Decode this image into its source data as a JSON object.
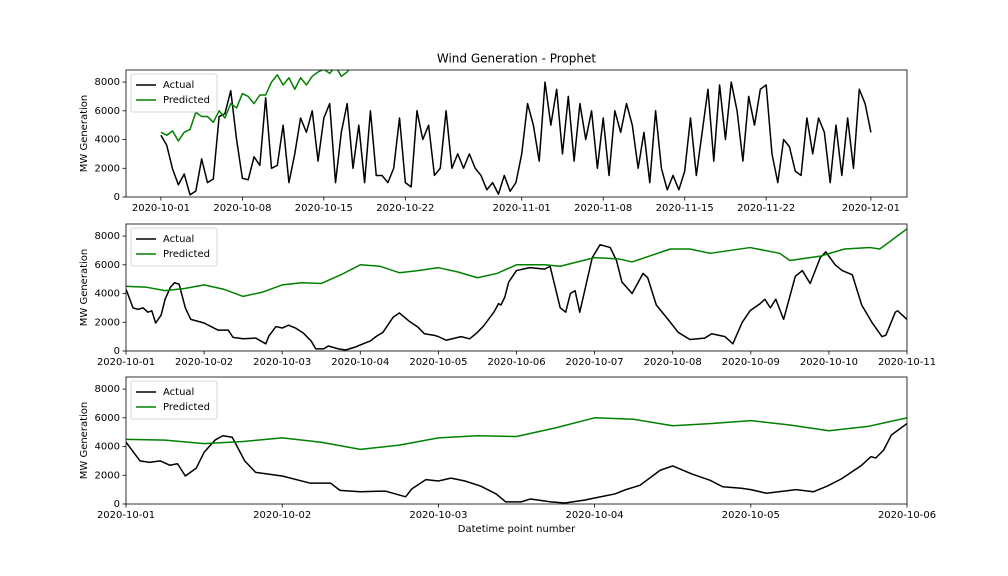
{
  "chart_data": [
    {
      "type": "line",
      "title": "Wind Generation - Prophet",
      "ylabel": "MW Generation",
      "legend": "upper left",
      "xlim": [
        -3.0,
        64.1
      ],
      "ylim": [
        0,
        8840
      ],
      "xticks": [
        {
          "value": 0,
          "label": "2020-10-01"
        },
        {
          "value": 7,
          "label": "2020-10-08"
        },
        {
          "value": 14,
          "label": "2020-10-15"
        },
        {
          "value": 21,
          "label": "2020-10-22"
        },
        {
          "value": 31,
          "label": "2020-11-01"
        },
        {
          "value": 38,
          "label": "2020-11-08"
        },
        {
          "value": 45,
          "label": "2020-11-15"
        },
        {
          "value": 52,
          "label": "2020-11-22"
        },
        {
          "value": 61,
          "label": "2020-12-01"
        }
      ],
      "yticks": [
        0,
        2000,
        4000,
        6000,
        8000
      ],
      "series": [
        {
          "name": "Actual",
          "color": "#000000",
          "x": [
            0,
            0.5,
            1,
            1.5,
            2,
            2.5,
            3,
            3.5,
            4,
            4.5,
            5,
            5.5,
            6,
            6.5,
            7,
            7.5,
            8,
            8.5,
            9,
            9.5,
            10,
            10.5,
            11,
            11.5,
            12,
            12.5,
            13,
            13.5,
            14,
            14.5,
            15,
            15.5,
            16,
            16.5,
            17,
            17.5,
            18,
            18.5,
            19,
            19.5,
            20,
            20.5,
            21,
            21.5,
            22,
            22.5,
            23,
            23.5,
            24,
            24.5,
            25,
            25.5,
            26,
            26.5,
            27,
            27.5,
            28,
            28.5,
            29,
            29.5,
            30,
            30.5,
            31,
            31.5,
            32,
            32.5,
            33,
            33.5,
            34,
            34.5,
            35,
            35.5,
            36,
            36.5,
            37,
            37.5,
            38,
            38.5,
            39,
            39.5,
            40,
            40.5,
            41,
            41.5,
            42,
            42.5,
            43,
            43.5,
            44,
            44.5,
            45,
            45.5,
            46,
            46.5,
            47,
            47.5,
            48,
            48.5,
            49,
            49.5,
            50,
            50.5,
            51,
            51.5,
            52,
            52.5,
            53,
            53.5,
            54,
            54.5,
            55,
            55.5,
            56,
            56.5,
            57,
            57.5,
            58,
            58.5,
            59,
            59.5,
            60,
            60.5,
            61
          ],
          "values": [
            4300,
            3600,
            1950,
            850,
            1600,
            150,
            420,
            2650,
            1000,
            1250,
            5600,
            5800,
            7400,
            4000,
            1300,
            1200,
            2800,
            2200,
            6900,
            2000,
            2200,
            5000,
            1000,
            3000,
            5500,
            4500,
            6000,
            2500,
            5500,
            6500,
            1000,
            4500,
            6500,
            2000,
            5000,
            1000,
            6000,
            1500,
            1500,
            1000,
            2000,
            5500,
            1000,
            700,
            6000,
            4000,
            5000,
            1500,
            2000,
            6000,
            2000,
            3000,
            2000,
            3000,
            2000,
            1500,
            500,
            1000,
            200,
            1500,
            400,
            1000,
            3000,
            6500,
            5000,
            2500,
            8000,
            5000,
            7500,
            3000,
            7000,
            2500,
            6500,
            4000,
            6000,
            2000,
            5500,
            1500,
            6000,
            4500,
            6500,
            5000,
            2000,
            4500,
            1000,
            6000,
            2000,
            500,
            1500,
            500,
            1800,
            5500,
            1500,
            4500,
            7500,
            2500,
            7800,
            4000,
            8000,
            6000,
            2500,
            7000,
            5000,
            7500,
            7800,
            3000,
            1000,
            4000,
            3500,
            1800,
            1500,
            5500,
            3000,
            5500,
            4500,
            1000,
            5000,
            1500,
            5500,
            2000,
            7500,
            6500,
            4500
          ]
        },
        {
          "name": "Predicted",
          "color": "#008000",
          "x": [
            0,
            0.5,
            1,
            1.5,
            2,
            2.5,
            3,
            3.5,
            4,
            4.5,
            5,
            5.5,
            6,
            6.5,
            7,
            7.5,
            8,
            8.5,
            9,
            9.5,
            10,
            10.5,
            11,
            11.5,
            12,
            12.5,
            13,
            13.5,
            14,
            14.5,
            15,
            15.5,
            16,
            16.5
          ],
          "values": [
            4500,
            4300,
            4600,
            3900,
            4500,
            4700,
            5900,
            5600,
            5600,
            5200,
            6000,
            5500,
            6500,
            6200,
            7200,
            7000,
            6500,
            7100,
            7100,
            8000,
            8500,
            7800,
            8300,
            7500,
            8300,
            7800,
            8400,
            8700,
            8900,
            8600,
            9100,
            8400,
            8700,
            9300
          ]
        }
      ]
    },
    {
      "type": "line",
      "ylabel": "MW Generation",
      "legend": "upper left",
      "xlim": [
        0,
        10
      ],
      "ylim": [
        0,
        8840
      ],
      "xticks": [
        {
          "value": 0,
          "label": "2020-10-01"
        },
        {
          "value": 1,
          "label": "2020-10-02"
        },
        {
          "value": 2,
          "label": "2020-10-03"
        },
        {
          "value": 3,
          "label": "2020-10-04"
        },
        {
          "value": 4,
          "label": "2020-10-05"
        },
        {
          "value": 5,
          "label": "2020-10-06"
        },
        {
          "value": 6,
          "label": "2020-10-07"
        },
        {
          "value": 7,
          "label": "2020-10-08"
        },
        {
          "value": 8,
          "label": "2020-10-09"
        },
        {
          "value": 9,
          "label": "2020-10-10"
        },
        {
          "value": 10,
          "label": "2020-10-11"
        }
      ],
      "yticks": [
        0,
        2000,
        4000,
        6000,
        8000
      ],
      "series": [
        {
          "name": "Actual",
          "color": "#000000",
          "x": [
            0,
            0.09,
            0.15,
            0.22,
            0.28,
            0.33,
            0.38,
            0.45,
            0.5,
            0.57,
            0.62,
            0.68,
            0.76,
            0.83,
            1.0,
            1.18,
            1.31,
            1.37,
            1.5,
            1.66,
            1.79,
            1.83,
            1.92,
            2.0,
            2.08,
            2.17,
            2.27,
            2.37,
            2.43,
            2.53,
            2.59,
            2.72,
            2.81,
            2.94,
            3.0,
            3.13,
            3.2,
            3.29,
            3.42,
            3.5,
            3.62,
            3.74,
            3.82,
            3.94,
            4.0,
            4.1,
            4.29,
            4.4,
            4.49,
            4.58,
            4.71,
            4.77,
            4.8,
            4.85,
            4.9,
            5.0,
            5.17,
            5.36,
            5.43,
            5.56,
            5.63,
            5.69,
            5.75,
            5.81,
            5.97,
            6.07,
            6.2,
            6.28,
            6.35,
            6.48,
            6.62,
            6.68,
            6.79,
            6.94,
            7.07,
            7.22,
            7.41,
            7.5,
            7.67,
            7.77,
            7.89,
            7.99,
            8.12,
            8.18,
            8.25,
            8.32,
            8.42,
            8.57,
            8.66,
            8.76,
            8.89,
            8.96,
            9.08,
            9.17,
            9.3,
            9.42,
            9.55,
            9.68,
            9.73,
            9.85,
            9.88,
            10.0
          ],
          "values": [
            4300,
            3000,
            2900,
            3000,
            2700,
            2800,
            1950,
            2500,
            3600,
            4450,
            4750,
            4650,
            3000,
            2200,
            1950,
            1450,
            1450,
            950,
            850,
            900,
            500,
            1050,
            1700,
            1600,
            1800,
            1600,
            1250,
            700,
            150,
            150,
            350,
            150,
            70,
            280,
            420,
            700,
            1000,
            1300,
            2350,
            2650,
            2100,
            1650,
            1200,
            1100,
            1000,
            750,
            1000,
            850,
            1250,
            1750,
            2700,
            3300,
            3200,
            3750,
            4800,
            5600,
            5800,
            5700,
            5900,
            3000,
            2700,
            4000,
            4200,
            2700,
            6500,
            7400,
            7200,
            6300,
            4800,
            4000,
            5400,
            5100,
            3200,
            2200,
            1300,
            800,
            900,
            1200,
            1000,
            500,
            2000,
            2800,
            3300,
            3600,
            3000,
            3600,
            2200,
            5200,
            5600,
            4700,
            6500,
            6900,
            6000,
            5600,
            5300,
            3200,
            2000,
            1000,
            1100,
            2700,
            2800,
            2200
          ]
        },
        {
          "name": "Predicted",
          "color": "#008000",
          "x": [
            0,
            0.25,
            0.5,
            0.75,
            1,
            1.25,
            1.5,
            1.75,
            2,
            2.25,
            2.5,
            2.75,
            3,
            3.25,
            3.5,
            3.75,
            4,
            4.25,
            4.5,
            4.75,
            5,
            5.36,
            5.56,
            6.0,
            6.32,
            6.48,
            6.97,
            7.22,
            7.48,
            7.99,
            8.37,
            8.5,
            8.89,
            9.2,
            9.53,
            9.65,
            10.0
          ],
          "values": [
            4500,
            4450,
            4200,
            4350,
            4600,
            4300,
            3800,
            4100,
            4600,
            4750,
            4700,
            5300,
            6000,
            5900,
            5450,
            5600,
            5800,
            5500,
            5100,
            5400,
            6000,
            6000,
            5900,
            6500,
            6400,
            6200,
            7100,
            7100,
            6800,
            7200,
            6800,
            6300,
            6600,
            7100,
            7200,
            7100,
            8500
          ]
        }
      ]
    },
    {
      "type": "line",
      "ylabel": "MW Generation",
      "xlabel": "Datetime point number",
      "legend": "upper left",
      "xlim": [
        0,
        5
      ],
      "ylim": [
        0,
        8840
      ],
      "xticks": [
        {
          "value": 0,
          "label": "2020-10-01"
        },
        {
          "value": 1,
          "label": "2020-10-02"
        },
        {
          "value": 2,
          "label": "2020-10-03"
        },
        {
          "value": 3,
          "label": "2020-10-04"
        },
        {
          "value": 4,
          "label": "2020-10-05"
        },
        {
          "value": 5,
          "label": "2020-10-06"
        }
      ],
      "yticks": [
        0,
        2000,
        4000,
        6000,
        8000
      ],
      "series": [
        {
          "name": "Actual",
          "color": "#000000",
          "x": [
            0,
            0.09,
            0.15,
            0.22,
            0.28,
            0.33,
            0.38,
            0.45,
            0.5,
            0.57,
            0.62,
            0.68,
            0.76,
            0.83,
            1.0,
            1.18,
            1.31,
            1.37,
            1.5,
            1.66,
            1.79,
            1.83,
            1.92,
            2.0,
            2.08,
            2.17,
            2.27,
            2.37,
            2.43,
            2.53,
            2.59,
            2.72,
            2.81,
            2.94,
            3.0,
            3.13,
            3.2,
            3.29,
            3.42,
            3.5,
            3.62,
            3.74,
            3.82,
            3.94,
            4.0,
            4.1,
            4.29,
            4.4,
            4.49,
            4.58,
            4.71,
            4.77,
            4.8,
            4.85,
            4.9,
            5.0
          ],
          "values": [
            4300,
            3000,
            2900,
            3000,
            2700,
            2800,
            1950,
            2500,
            3600,
            4450,
            4750,
            4650,
            3000,
            2200,
            1950,
            1450,
            1450,
            950,
            850,
            900,
            500,
            1050,
            1700,
            1600,
            1800,
            1600,
            1250,
            700,
            150,
            150,
            350,
            150,
            70,
            280,
            420,
            700,
            1000,
            1300,
            2350,
            2650,
            2100,
            1650,
            1200,
            1100,
            1000,
            750,
            1000,
            850,
            1250,
            1750,
            2700,
            3300,
            3200,
            3750,
            4800,
            5600
          ]
        },
        {
          "name": "Predicted",
          "color": "#008000",
          "x": [
            0,
            0.25,
            0.5,
            0.75,
            1,
            1.25,
            1.5,
            1.75,
            2,
            2.25,
            2.5,
            2.75,
            3,
            3.25,
            3.5,
            3.75,
            4,
            4.25,
            4.5,
            4.75,
            5
          ],
          "values": [
            4500,
            4450,
            4200,
            4350,
            4600,
            4300,
            3800,
            4100,
            4600,
            4750,
            4700,
            5300,
            6000,
            5900,
            5450,
            5600,
            5800,
            5500,
            5100,
            5400,
            6000
          ]
        }
      ]
    }
  ]
}
